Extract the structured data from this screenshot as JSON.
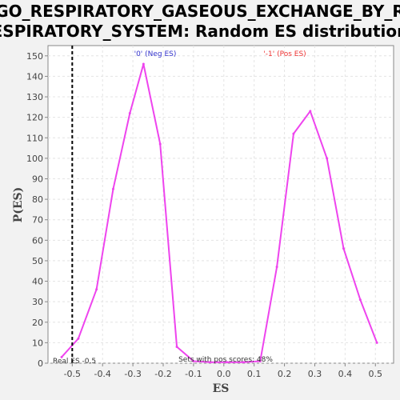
{
  "chart_data": {
    "type": "line",
    "title_line1": "GO_RESPIRATORY_GASEOUS_EXCHANGE_BY_R",
    "title_line2": "ESPIRATORY_SYSTEM: Random ES distribution",
    "xlabel": "ES",
    "ylabel": "P(ES)",
    "xlim": [
      -0.58,
      0.56
    ],
    "ylim": [
      0,
      155
    ],
    "x_ticks": [
      -0.5,
      -0.4,
      -0.3,
      -0.2,
      -0.1,
      0.0,
      0.1,
      0.2,
      0.3,
      0.4,
      0.5
    ],
    "x_tick_labels": [
      "-0.5",
      "-0.4",
      "-0.3",
      "-0.2",
      "-0.1",
      "0.0",
      "0.1",
      "0.2",
      "0.3",
      "0.4",
      "0.5"
    ],
    "y_ticks": [
      0,
      10,
      20,
      30,
      40,
      50,
      60,
      70,
      80,
      90,
      100,
      110,
      120,
      130,
      140,
      150
    ],
    "y_tick_labels": [
      "0",
      "10",
      "20",
      "30",
      "40",
      "50",
      "60",
      "70",
      "80",
      "90",
      "100",
      "110",
      "120",
      "130",
      "140",
      "150"
    ],
    "grid": true,
    "series_color": "#ee44ee",
    "x": [
      -0.535,
      -0.48,
      -0.42,
      -0.365,
      -0.31,
      -0.265,
      -0.21,
      -0.155,
      -0.1,
      -0.045,
      0.01,
      0.065,
      0.12,
      0.175,
      0.23,
      0.285,
      0.34,
      0.395,
      0.45,
      0.505
    ],
    "y": [
      3,
      12,
      36,
      85,
      122,
      146,
      107,
      8,
      1,
      0.5,
      0.5,
      0.5,
      1,
      47,
      112,
      123,
      100,
      56,
      31,
      10
    ],
    "real_es_value": -0.5,
    "real_es_label": "Real ES -0.5",
    "neg_label": "'0' (Neg ES)",
    "neg_color": "#3333cc",
    "pos_label": "'-1' (Pos ES)",
    "pos_color": "#ee3333",
    "pos_scores_label": "Sets with pos scores: 48%"
  }
}
